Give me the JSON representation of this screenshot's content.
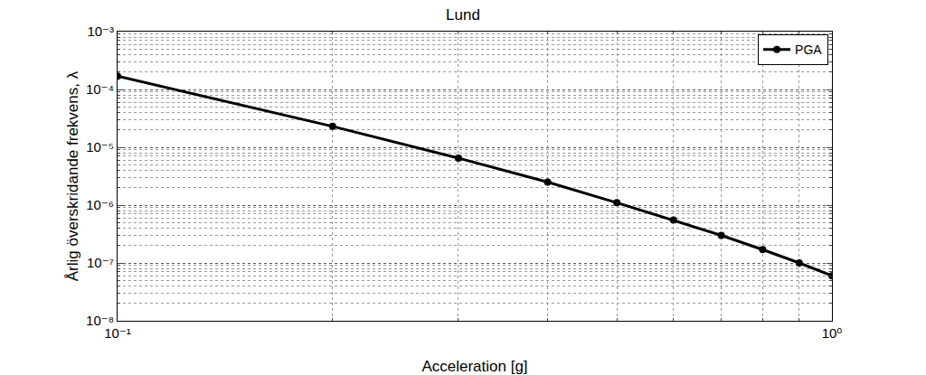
{
  "chart_data": {
    "type": "line",
    "title": "Lund",
    "x_label": "Acceleration [g]",
    "y_label": "Årlig överskridande frekvens, λ",
    "log": true,
    "grid": true,
    "legend": "top right",
    "xlim": [
      0.1,
      1
    ],
    "xticks": [
      {
        "value": 0.1,
        "label": "10⁻¹"
      },
      {
        "value": 1,
        "label": "10⁰"
      }
    ],
    "ylim": [
      1e-08,
      0.001
    ],
    "yticks": [
      {
        "value": 1e-08,
        "label": "10⁻⁸"
      },
      {
        "value": 1e-07,
        "label": "10⁻⁷"
      },
      {
        "value": 1e-06,
        "label": "10⁻⁶"
      },
      {
        "value": 1e-05,
        "label": "10⁻⁵"
      },
      {
        "value": 0.0001,
        "label": "10⁻⁴"
      },
      {
        "value": 0.001,
        "label": "10⁻³"
      }
    ],
    "x": [
      0.1,
      0.2,
      0.3,
      0.4,
      0.5,
      0.6,
      0.7,
      0.8,
      0.9,
      1.0
    ],
    "series": [
      {
        "name": "PGA",
        "color": "#000000",
        "marker": "circle",
        "line_style": "solid",
        "values": [
          0.00017,
          2.3e-05,
          6.5e-06,
          2.5e-06,
          1.1e-06,
          5.5e-07,
          3e-07,
          1.7e-07,
          1e-07,
          6e-08
        ]
      }
    ]
  }
}
